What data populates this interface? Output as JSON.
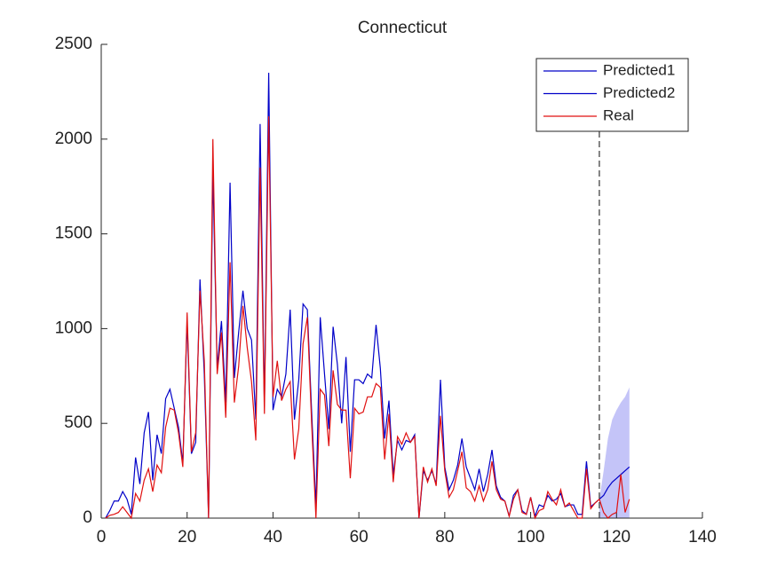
{
  "chart_data": {
    "type": "line",
    "title": "Connecticut",
    "xlim": [
      0,
      140
    ],
    "xticks": [
      0,
      20,
      40,
      60,
      80,
      100,
      120,
      140
    ],
    "ylim": [
      0,
      2500
    ],
    "yticks": [
      0,
      500,
      1000,
      1500,
      2000,
      2500
    ],
    "legend": "top-right",
    "vline": 116,
    "band": {
      "color": "#c4c4f8",
      "x": [
        116,
        117,
        118,
        119,
        120,
        121,
        122,
        123
      ],
      "lower": [
        0,
        0,
        0,
        0,
        0,
        0,
        0,
        0
      ],
      "upper": [
        100,
        250,
        420,
        520,
        570,
        610,
        640,
        690
      ]
    },
    "series": [
      {
        "name": "Predicted1",
        "color": "#0000c8",
        "x": [
          1,
          2,
          3,
          4,
          5,
          6,
          7,
          8,
          9,
          10,
          11,
          12,
          13,
          14,
          15,
          16,
          17,
          18,
          19,
          20,
          21,
          22,
          23,
          24,
          25,
          26,
          27,
          28,
          29,
          30,
          31,
          32,
          33,
          34,
          35,
          36,
          37,
          38,
          39,
          40,
          41,
          42,
          43,
          44,
          45,
          46,
          47,
          48,
          49,
          50,
          51,
          52,
          53,
          54,
          55,
          56,
          57,
          58,
          59,
          60,
          61,
          62,
          63,
          64,
          65,
          66,
          67,
          68,
          69,
          70,
          71,
          72,
          73,
          74,
          75,
          76,
          77,
          78,
          79,
          80,
          81,
          82,
          83,
          84,
          85,
          86,
          87,
          88,
          89,
          90,
          91,
          92,
          93,
          94,
          95,
          96,
          97,
          98,
          99,
          100,
          101,
          102,
          103,
          104,
          105,
          106,
          107,
          108,
          109,
          110,
          111,
          112,
          113,
          114,
          115,
          116
        ],
        "values": [
          0,
          40,
          90,
          90,
          140,
          100,
          20,
          320,
          180,
          450,
          560,
          200,
          440,
          340,
          630,
          680,
          580,
          480,
          290,
          1040,
          340,
          400,
          1260,
          760,
          0,
          1830,
          790,
          1040,
          610,
          1770,
          740,
          980,
          1200,
          1000,
          940,
          520,
          2080,
          590,
          2350,
          570,
          680,
          640,
          760,
          1100,
          520,
          730,
          1130,
          1100,
          560,
          60,
          1060,
          760,
          470,
          1010,
          810,
          500,
          850,
          350,
          730,
          730,
          710,
          760,
          740,
          1020,
          790,
          420,
          620,
          230,
          410,
          360,
          410,
          400,
          440,
          0,
          250,
          200,
          250,
          180,
          730,
          270,
          150,
          200,
          280,
          420,
          270,
          210,
          150,
          260,
          140,
          230,
          360,
          170,
          110,
          90,
          10,
          120,
          150,
          40,
          20,
          110,
          10,
          70,
          60,
          120,
          90,
          100,
          130,
          60,
          70,
          70,
          20,
          20,
          300,
          60,
          80,
          100
        ]
      },
      {
        "name": "Predicted2",
        "color": "#0000c8",
        "x": [
          116,
          117,
          118,
          119,
          120,
          121,
          122,
          123
        ],
        "values": [
          100,
          120,
          160,
          190,
          210,
          230,
          250,
          270
        ]
      },
      {
        "name": "Real",
        "color": "#e01010",
        "x": [
          1,
          2,
          3,
          4,
          5,
          6,
          7,
          8,
          9,
          10,
          11,
          12,
          13,
          14,
          15,
          16,
          17,
          18,
          19,
          20,
          21,
          22,
          23,
          24,
          25,
          26,
          27,
          28,
          29,
          30,
          31,
          32,
          33,
          34,
          35,
          36,
          37,
          38,
          39,
          40,
          41,
          42,
          43,
          44,
          45,
          46,
          47,
          48,
          49,
          50,
          51,
          52,
          53,
          54,
          55,
          56,
          57,
          58,
          59,
          60,
          61,
          62,
          63,
          64,
          65,
          66,
          67,
          68,
          69,
          70,
          71,
          72,
          73,
          74,
          75,
          76,
          77,
          78,
          79,
          80,
          81,
          82,
          83,
          84,
          85,
          86,
          87,
          88,
          89,
          90,
          91,
          92,
          93,
          94,
          95,
          96,
          97,
          98,
          99,
          100,
          101,
          102,
          103,
          104,
          105,
          106,
          107,
          108,
          109,
          110,
          111,
          112,
          113,
          114,
          115,
          116,
          117,
          118,
          119,
          120,
          121,
          122,
          123
        ],
        "values": [
          0,
          15,
          20,
          30,
          60,
          30,
          0,
          130,
          90,
          200,
          260,
          140,
          280,
          240,
          480,
          580,
          570,
          450,
          270,
          1085,
          350,
          450,
          1200,
          830,
          0,
          2000,
          760,
          980,
          530,
          1350,
          610,
          800,
          1120,
          900,
          720,
          410,
          1850,
          550,
          2120,
          640,
          830,
          620,
          680,
          720,
          310,
          470,
          920,
          1060,
          500,
          0,
          680,
          650,
          380,
          780,
          600,
          570,
          570,
          210,
          580,
          550,
          560,
          640,
          640,
          710,
          690,
          310,
          550,
          190,
          430,
          390,
          450,
          400,
          430,
          0,
          270,
          190,
          260,
          170,
          540,
          250,
          110,
          150,
          250,
          350,
          160,
          140,
          90,
          170,
          90,
          150,
          300,
          150,
          100,
          90,
          10,
          100,
          150,
          30,
          20,
          110,
          0,
          40,
          50,
          140,
          100,
          70,
          150,
          60,
          80,
          40,
          0,
          0,
          260,
          50,
          80,
          100,
          30,
          0,
          20,
          30,
          230,
          30,
          100
        ]
      }
    ]
  }
}
